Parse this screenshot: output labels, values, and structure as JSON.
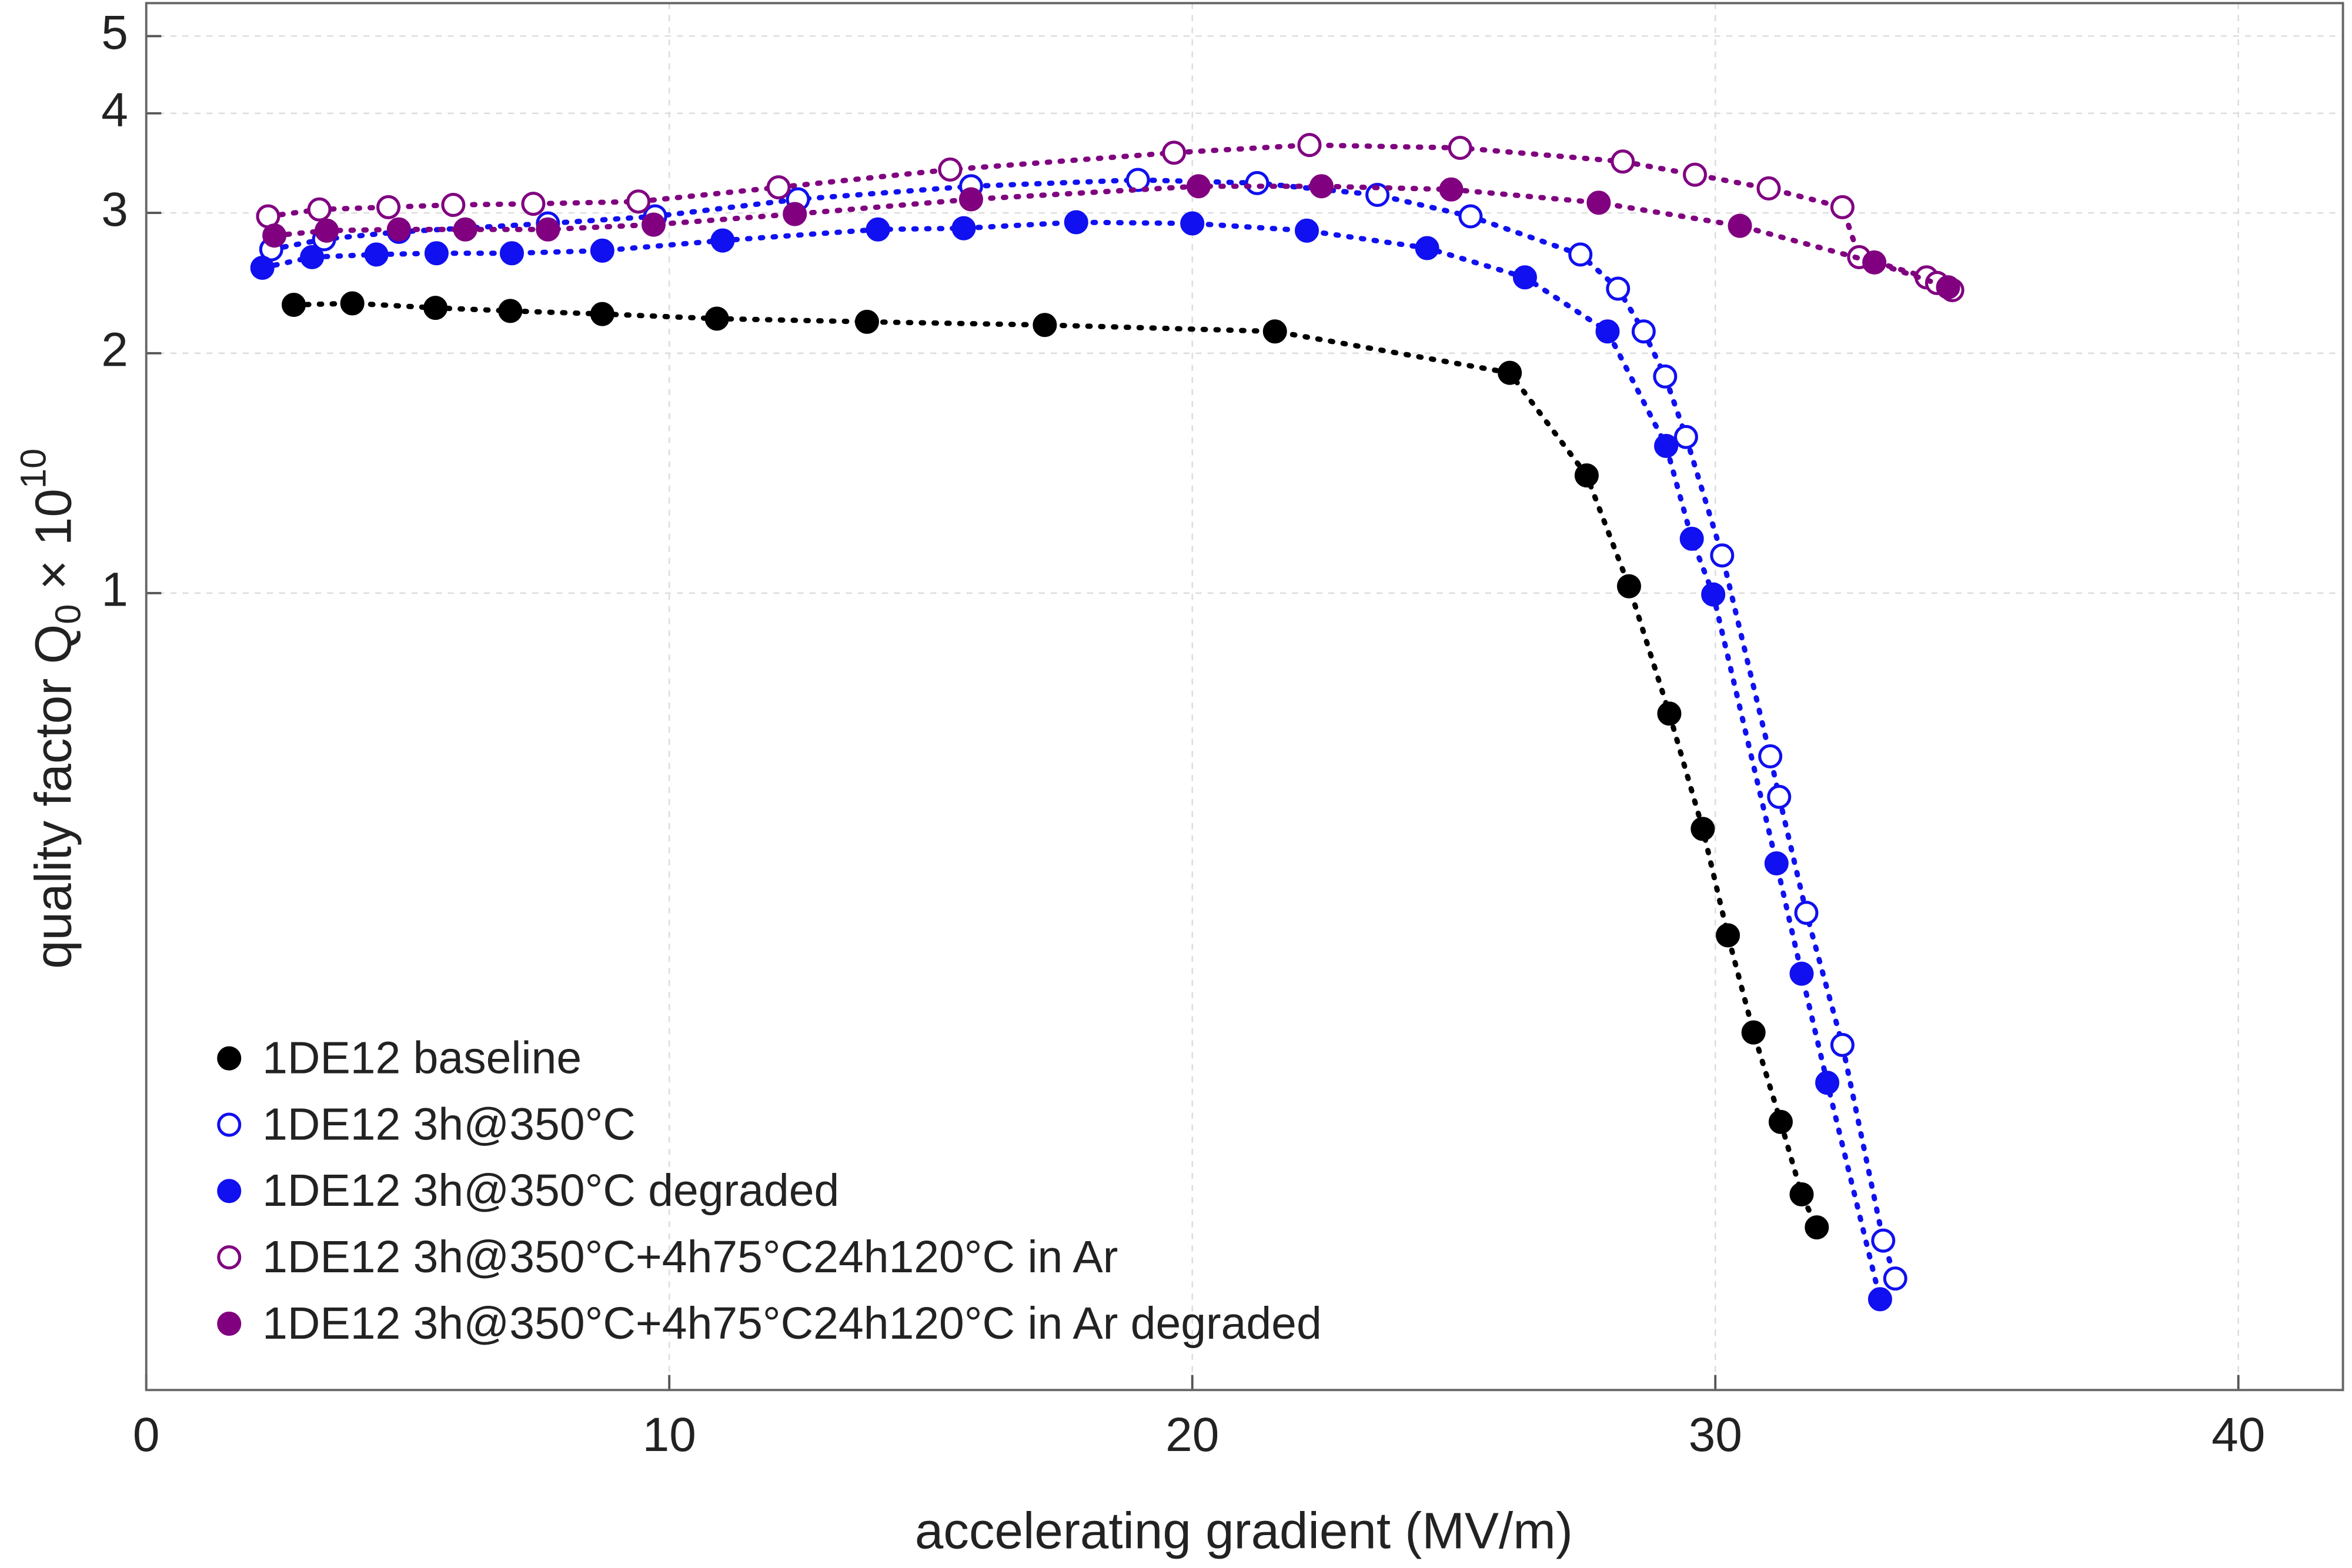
{
  "chart_data": {
    "type": "scatter",
    "xlabel": "accelerating gradient (MV/m)",
    "ylabel": {
      "text": "quality factor Q",
      "subscript": "0",
      "factor": " × 10",
      "exponent": "10"
    },
    "xlim": [
      0,
      42
    ],
    "xticks": [
      0,
      10,
      20,
      30,
      40
    ],
    "ylim": [
      0.1,
      5.5
    ],
    "yticks": [
      1,
      2,
      3,
      4,
      5
    ],
    "log_y": true,
    "grid": true,
    "legend": "lower left",
    "series": [
      {
        "name": "1DE12 baseline",
        "color": "#000000",
        "marker": "filled",
        "x": [
          2.82,
          3.94,
          5.53,
          6.96,
          8.72,
          10.91,
          13.78,
          17.18,
          21.58,
          26.07,
          27.54,
          28.35,
          29.12,
          29.76,
          30.24,
          30.73,
          31.25,
          31.65,
          31.94
        ],
        "values": [
          2.3,
          2.31,
          2.28,
          2.26,
          2.24,
          2.21,
          2.19,
          2.17,
          2.13,
          1.89,
          1.405,
          1.02,
          0.706,
          0.506,
          0.372,
          0.281,
          0.217,
          0.176,
          0.16
        ]
      },
      {
        "name": "1DE12 3h@350°C",
        "color": "#1010f0",
        "marker": "open",
        "x": [
          2.39,
          3.4,
          4.83,
          7.68,
          9.73,
          12.46,
          15.77,
          18.96,
          21.24,
          23.54,
          25.32,
          27.42,
          28.14,
          28.63,
          29.04,
          29.44,
          30.13,
          31.05,
          31.22,
          31.74,
          32.43,
          33.21,
          33.44
        ],
        "values": [
          2.7,
          2.78,
          2.84,
          2.91,
          2.97,
          3.12,
          3.24,
          3.3,
          3.27,
          3.16,
          2.97,
          2.66,
          2.41,
          2.13,
          1.87,
          1.57,
          1.115,
          0.624,
          0.555,
          0.397,
          0.271,
          0.154,
          0.138
        ]
      },
      {
        "name": "1DE12 3h@350°C degraded",
        "color": "#1010f0",
        "marker": "filled",
        "x": [
          2.22,
          3.17,
          4.4,
          5.55,
          6.99,
          8.72,
          11.02,
          13.99,
          15.63,
          17.78,
          20.0,
          22.19,
          24.49,
          26.36,
          27.94,
          29.06,
          29.55,
          29.96,
          31.17,
          31.65,
          32.14,
          33.15
        ],
        "values": [
          2.56,
          2.64,
          2.66,
          2.67,
          2.67,
          2.69,
          2.77,
          2.86,
          2.87,
          2.92,
          2.91,
          2.85,
          2.71,
          2.49,
          2.13,
          1.53,
          1.17,
          0.996,
          0.458,
          0.333,
          0.243,
          0.13
        ]
      },
      {
        "name": "1DE12 3h@350°C+4h75°C24h120°C in Ar",
        "color": "#800080",
        "marker": "open",
        "x": [
          2.33,
          3.31,
          4.63,
          5.87,
          7.4,
          9.41,
          12.09,
          15.37,
          19.65,
          22.24,
          25.12,
          28.23,
          29.61,
          31.02,
          32.43,
          32.75,
          34.04,
          34.24,
          34.53
        ],
        "values": [
          2.97,
          3.03,
          3.05,
          3.07,
          3.08,
          3.1,
          3.23,
          3.4,
          3.57,
          3.65,
          3.62,
          3.48,
          3.35,
          3.22,
          3.05,
          2.64,
          2.49,
          2.45,
          2.4
        ]
      },
      {
        "name": "1DE12 3h@350°C+4h75°C24h120°C in Ar degraded",
        "color": "#800080",
        "marker": "filled",
        "x": [
          2.45,
          3.45,
          4.83,
          6.1,
          7.68,
          9.7,
          12.4,
          15.77,
          20.12,
          22.47,
          24.95,
          27.77,
          30.47,
          33.04,
          34.45
        ],
        "values": [
          2.81,
          2.85,
          2.86,
          2.86,
          2.86,
          2.9,
          2.99,
          3.12,
          3.24,
          3.24,
          3.21,
          3.09,
          2.89,
          2.6,
          2.42
        ]
      }
    ]
  }
}
